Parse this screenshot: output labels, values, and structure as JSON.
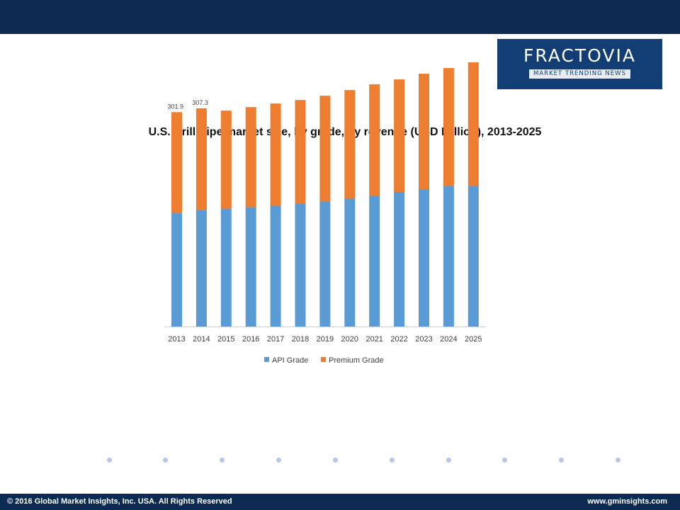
{
  "logo": {
    "name": "FRACTOVIA",
    "tagline": "MARKET TRENDING NEWS"
  },
  "footer": {
    "copyright": "© 2016 Global Market Insights, Inc. USA. All Rights Reserved",
    "website": "www.gminsights.com"
  },
  "colors": {
    "header": "#0d2b52",
    "api": "#5b9bd5",
    "premium": "#ed7d31",
    "dots": "#b7c6e3"
  },
  "chart_data": {
    "type": "bar",
    "stacked": true,
    "title": "U.S. Drill Pipe market size, by grade, by revenue (USD Million), 2013-2025",
    "categories": [
      "2013",
      "2014",
      "2015",
      "2016",
      "2017",
      "2018",
      "2019",
      "2020",
      "2021",
      "2022",
      "2023",
      "2024",
      "2025"
    ],
    "series": [
      {
        "name": "API Grade",
        "color": "#5b9bd5",
        "values": [
          160,
          164,
          166,
          168,
          170,
          173,
          176,
          180,
          184,
          189,
          193,
          198,
          198
        ]
      },
      {
        "name": "Premium Grade",
        "color": "#ed7d31",
        "values": [
          141.9,
          143.3,
          138,
          141,
          144,
          146,
          149,
          153,
          157,
          159,
          163,
          166,
          174
        ]
      }
    ],
    "data_labels": [
      {
        "category": "2013",
        "text": "301.9"
      },
      {
        "category": "2014",
        "text": "307.3"
      }
    ],
    "ylim": [
      0,
      380
    ],
    "grid": false,
    "legend": "bottom"
  }
}
